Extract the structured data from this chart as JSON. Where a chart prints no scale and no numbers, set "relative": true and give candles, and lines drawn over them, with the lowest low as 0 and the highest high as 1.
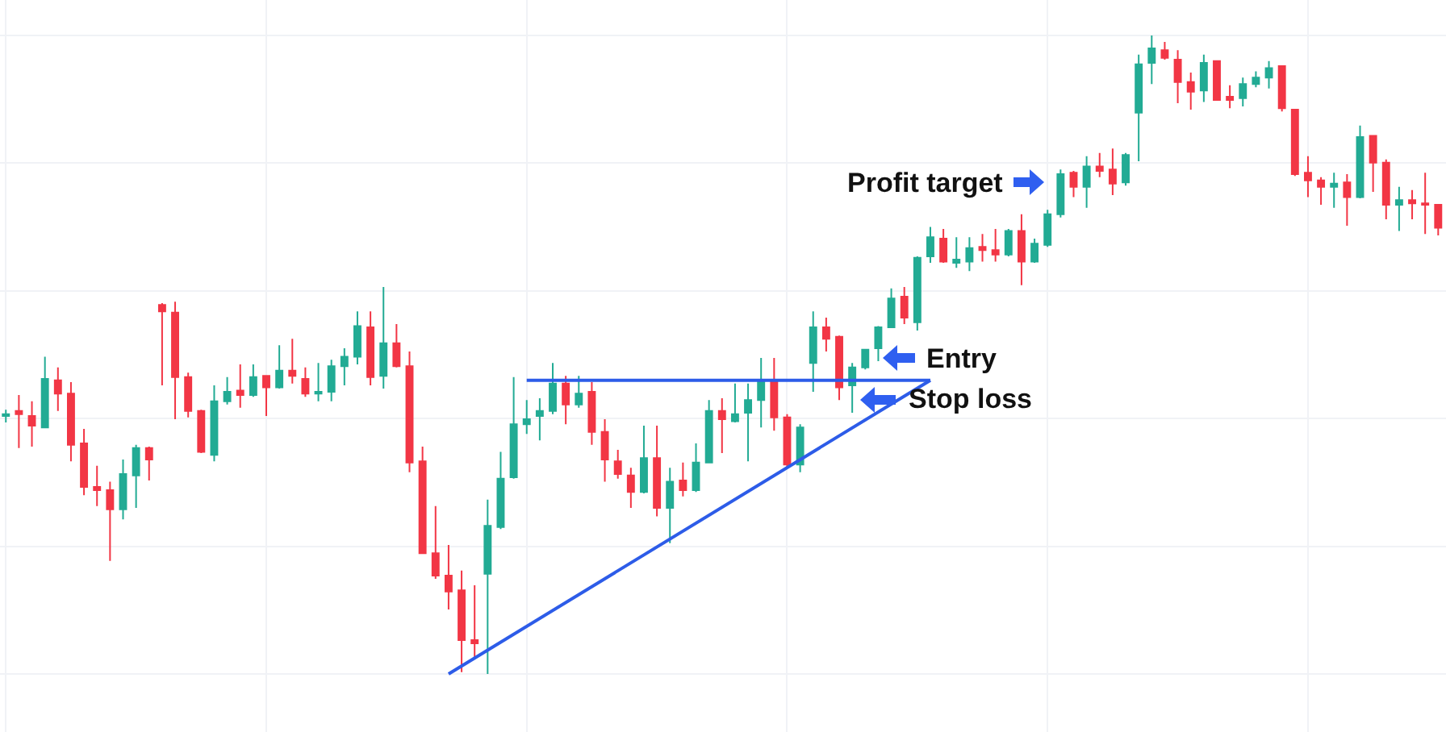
{
  "chart_data": {
    "type": "candlestick",
    "relative": true,
    "grid": true,
    "tick_labels": false,
    "categories": [
      null,
      null,
      null,
      null,
      null,
      null,
      null,
      null,
      null,
      null,
      null,
      null,
      null,
      null,
      null,
      null,
      null,
      null,
      null,
      null,
      null,
      null,
      null,
      null,
      null,
      null,
      null,
      null,
      null,
      null,
      null,
      null,
      null,
      null,
      null,
      null,
      null,
      null,
      null,
      null,
      null,
      null,
      null,
      null,
      null,
      null,
      null,
      null,
      null,
      null,
      null,
      null,
      null,
      null,
      null,
      null,
      null,
      null,
      null,
      null,
      null,
      null,
      null,
      null,
      null,
      null,
      null,
      null,
      null,
      null,
      null,
      null,
      null,
      null,
      null,
      null,
      null,
      null,
      null,
      null,
      null,
      null,
      null,
      null,
      null,
      null,
      null,
      null,
      null,
      null,
      null,
      null,
      null,
      null,
      null,
      null,
      null,
      null,
      null,
      null,
      null,
      null,
      null,
      null,
      null,
      null,
      null,
      null,
      null,
      null,
      null
    ],
    "ohlc": [
      [
        0.404,
        0.414,
        0.394,
        0.407
      ],
      [
        0.412,
        0.437,
        0.354,
        0.407
      ],
      [
        0.404,
        0.427,
        0.356,
        0.389
      ],
      [
        0.386,
        0.497,
        0.386,
        0.462
      ],
      [
        0.46,
        0.48,
        0.412,
        0.439
      ],
      [
        0.439,
        0.457,
        0.333,
        0.359
      ],
      [
        0.361,
        0.384,
        0.28,
        0.293
      ],
      [
        0.293,
        0.326,
        0.263,
        0.288
      ],
      [
        0.288,
        0.301,
        0.177,
        0.258
      ],
      [
        0.258,
        0.336,
        0.242,
        0.313
      ],
      [
        0.311,
        0.359,
        0.26,
        0.354
      ],
      [
        0.354,
        0.356,
        0.303,
        0.336
      ],
      [
        0.578,
        0.581,
        0.452,
        0.568
      ],
      [
        0.566,
        0.583,
        0.399,
        0.465
      ],
      [
        0.465,
        0.472,
        0.402,
        0.412
      ],
      [
        0.412,
        0.414,
        0.346,
        0.348
      ],
      [
        0.343,
        0.452,
        0.333,
        0.427
      ],
      [
        0.427,
        0.465,
        0.422,
        0.442
      ],
      [
        0.444,
        0.485,
        0.417,
        0.437
      ],
      [
        0.437,
        0.485,
        0.434,
        0.465
      ],
      [
        0.467,
        0.467,
        0.404,
        0.449
      ],
      [
        0.449,
        0.515,
        0.447,
        0.475
      ],
      [
        0.475,
        0.525,
        0.455,
        0.467
      ],
      [
        0.462,
        0.48,
        0.434,
        0.439
      ],
      [
        0.439,
        0.487,
        0.427,
        0.442
      ],
      [
        0.442,
        0.492,
        0.427,
        0.482
      ],
      [
        0.482,
        0.51,
        0.452,
        0.497
      ],
      [
        0.497,
        0.568,
        0.485,
        0.545
      ],
      [
        0.543,
        0.568,
        0.452,
        0.465
      ],
      [
        0.467,
        0.606,
        0.447,
        0.518
      ],
      [
        0.518,
        0.548,
        0.48,
        0.482
      ],
      [
        0.482,
        0.505,
        0.316,
        0.331
      ],
      [
        0.333,
        0.356,
        0.189,
        0.189
      ],
      [
        0.189,
        0.263,
        0.149,
        0.154
      ],
      [
        0.154,
        0.202,
        0.101,
        0.129
      ],
      [
        0.131,
        0.162,
        0.003,
        0.053
      ],
      [
        0.053,
        0.139,
        0.025,
        0.048
      ],
      [
        0.157,
        0.273,
        0,
        0.232
      ],
      [
        0.23,
        0.348,
        0.227,
        0.306
      ],
      [
        0.308,
        0.465,
        0.306,
        0.391
      ],
      [
        0.391,
        0.429,
        0.376,
        0.399
      ],
      [
        0.404,
        0.432,
        0.366,
        0.412
      ],
      [
        0.412,
        0.487,
        0.407,
        0.455
      ],
      [
        0.455,
        0.467,
        0.391,
        0.422
      ],
      [
        0.422,
        0.467,
        0.417,
        0.439
      ],
      [
        0.442,
        0.457,
        0.359,
        0.379
      ],
      [
        0.379,
        0.399,
        0.301,
        0.336
      ],
      [
        0.333,
        0.351,
        0.306,
        0.313
      ],
      [
        0.311,
        0.323,
        0.26,
        0.285
      ],
      [
        0.285,
        0.389,
        0.283,
        0.338
      ],
      [
        0.338,
        0.389,
        0.247,
        0.26
      ],
      [
        0.26,
        0.323,
        0.205,
        0.301
      ],
      [
        0.303,
        0.331,
        0.278,
        0.288
      ],
      [
        0.288,
        0.361,
        0.285,
        0.331
      ],
      [
        0.331,
        0.429,
        0.331,
        0.412
      ],
      [
        0.412,
        0.432,
        0.346,
        0.399
      ],
      [
        0.396,
        0.455,
        0.394,
        0.407
      ],
      [
        0.409,
        0.455,
        0.333,
        0.429
      ],
      [
        0.429,
        0.495,
        0.386,
        0.457
      ],
      [
        0.457,
        0.495,
        0.381,
        0.402
      ],
      [
        0.402,
        0.407,
        0.323,
        0.328
      ],
      [
        0.328,
        0.391,
        0.316,
        0.386
      ],
      [
        0.487,
        0.568,
        0.442,
        0.543
      ],
      [
        0.543,
        0.558,
        0.505,
        0.525
      ],
      [
        0.528,
        0.53,
        0.429,
        0.449
      ],
      [
        0.452,
        0.487,
        0.409,
        0.48
      ],
      [
        0.48,
        0.508,
        0.477,
        0.508
      ],
      [
        0.51,
        0.545,
        0.49,
        0.543
      ],
      [
        0.543,
        0.604,
        0.543,
        0.588
      ],
      [
        0.591,
        0.606,
        0.548,
        0.558
      ],
      [
        0.551,
        0.654,
        0.538,
        0.652
      ],
      [
        0.654,
        0.7,
        0.644,
        0.684
      ],
      [
        0.682,
        0.697,
        0.644,
        0.646
      ],
      [
        0.644,
        0.684,
        0.636,
        0.649
      ],
      [
        0.646,
        0.684,
        0.631,
        0.667
      ],
      [
        0.669,
        0.689,
        0.646,
        0.664
      ],
      [
        0.664,
        0.697,
        0.646,
        0.657
      ],
      [
        0.657,
        0.697,
        0.654,
        0.694
      ],
      [
        0.694,
        0.72,
        0.609,
        0.646
      ],
      [
        0.646,
        0.682,
        0.644,
        0.674
      ],
      [
        0.672,
        0.727,
        0.669,
        0.72
      ],
      [
        0.72,
        0.79,
        0.715,
        0.783
      ],
      [
        0.785,
        0.788,
        0.747,
        0.763
      ],
      [
        0.763,
        0.811,
        0.73,
        0.795
      ],
      [
        0.795,
        0.816,
        0.778,
        0.788
      ],
      [
        0.79,
        0.823,
        0.75,
        0.768
      ],
      [
        0.77,
        0.816,
        0.765,
        0.813
      ],
      [
        0.879,
        0.97,
        0.803,
        0.955
      ],
      [
        0.957,
        1,
        0.924,
        0.98
      ],
      [
        0.977,
        0.99,
        0.962,
        0.965
      ],
      [
        0.962,
        0.977,
        0.894,
        0.927
      ],
      [
        0.927,
        0.942,
        0.884,
        0.912
      ],
      [
        0.914,
        0.97,
        0.896,
        0.957
      ],
      [
        0.96,
        0.96,
        0.899,
        0.899
      ],
      [
        0.904,
        0.922,
        0.886,
        0.899
      ],
      [
        0.902,
        0.934,
        0.889,
        0.924
      ],
      [
        0.924,
        0.944,
        0.919,
        0.934
      ],
      [
        0.934,
        0.96,
        0.917,
        0.949
      ],
      [
        0.952,
        0.952,
        0.881,
        0.886
      ],
      [
        0.884,
        0.884,
        0.78,
        0.783
      ],
      [
        0.785,
        0.811,
        0.747,
        0.773
      ],
      [
        0.773,
        0.778,
        0.735,
        0.763
      ],
      [
        0.763,
        0.785,
        0.73,
        0.768
      ],
      [
        0.77,
        0.783,
        0.702,
        0.747
      ],
      [
        0.747,
        0.859,
        0.745,
        0.841
      ],
      [
        0.843,
        0.843,
        0.755,
        0.801
      ],
      [
        0.801,
        0.806,
        0.712,
        0.735
      ],
      [
        0.735,
        0.763,
        0.694,
        0.742
      ],
      [
        0.742,
        0.758,
        0.712,
        0.737
      ],
      [
        0.737,
        0.785,
        0.689,
        0.735
      ],
      [
        0.735,
        0.735,
        0.687,
        0.699
      ]
    ],
    "colors": [
      "#22ab94",
      "#f23645",
      "#f23645",
      "#22ab94",
      "#f23645",
      "#f23645",
      "#f23645",
      "#f23645",
      "#f23645",
      "#22ab94",
      "#22ab94",
      "#f23645",
      "#f23645",
      "#f23645",
      "#f23645",
      "#f23645",
      "#22ab94",
      "#22ab94",
      "#f23645",
      "#22ab94",
      "#f23645",
      "#22ab94",
      "#f23645",
      "#f23645",
      "#22ab94",
      "#22ab94",
      "#22ab94",
      "#22ab94",
      "#f23645",
      "#22ab94",
      "#f23645",
      "#f23645",
      "#f23645",
      "#f23645",
      "#f23645",
      "#f23645",
      "#f23645",
      "#22ab94",
      "#22ab94",
      "#22ab94",
      "#22ab94",
      "#22ab94",
      "#22ab94",
      "#f23645",
      "#22ab94",
      "#f23645",
      "#f23645",
      "#f23645",
      "#f23645",
      "#22ab94",
      "#f23645",
      "#22ab94",
      "#f23645",
      "#22ab94",
      "#22ab94",
      "#f23645",
      "#22ab94",
      "#22ab94",
      "#22ab94",
      "#f23645",
      "#f23645",
      "#22ab94",
      "#22ab94",
      "#f23645",
      "#f23645",
      "#22ab94",
      "#22ab94",
      "#22ab94",
      "#22ab94",
      "#f23645",
      "#22ab94",
      "#22ab94",
      "#f23645",
      "#22ab94",
      "#22ab94",
      "#f23645",
      "#f23645",
      "#22ab94",
      "#f23645",
      "#22ab94",
      "#22ab94",
      "#22ab94",
      "#f23645",
      "#22ab94",
      "#f23645",
      "#f23645",
      "#22ab94",
      "#22ab94",
      "#22ab94",
      "#f23645",
      "#f23645",
      "#f23645",
      "#22ab94",
      "#f23645",
      "#f23645",
      "#22ab94",
      "#22ab94",
      "#22ab94",
      "#f23645",
      "#f23645",
      "#f23645",
      "#f23645",
      "#22ab94",
      "#f23645",
      "#22ab94",
      "#f23645",
      "#f23645",
      "#22ab94",
      "#f23645",
      "#f23645",
      "#f23645"
    ],
    "series": [
      {
        "type": "line",
        "values": [
          null,
          null,
          null,
          null,
          null,
          null,
          null,
          null,
          null,
          null,
          null,
          null,
          null,
          null,
          null,
          null,
          null,
          null,
          null,
          null,
          null,
          null,
          null,
          null,
          null,
          null,
          null,
          null,
          null,
          null,
          null,
          null,
          null,
          null,
          null,
          null,
          null,
          null,
          null,
          null,
          0.46,
          null,
          null,
          null,
          null,
          null,
          null,
          null,
          null,
          null,
          null,
          null,
          null,
          null,
          null,
          null,
          null,
          null,
          null,
          null,
          null,
          null,
          null,
          null,
          null,
          null,
          null,
          null,
          null,
          null,
          null,
          0.46,
          null,
          null,
          null,
          null,
          null,
          null,
          null,
          null,
          null,
          null,
          null,
          null,
          null,
          null,
          null,
          null,
          null,
          null,
          null,
          null,
          null,
          null,
          null,
          null,
          null,
          null,
          null,
          null,
          null,
          null,
          null,
          null,
          null,
          null,
          null,
          null,
          null,
          null,
          null
        ],
        "color": "#2d5ce8"
      },
      {
        "type": "line",
        "values": [
          null,
          null,
          null,
          null,
          null,
          null,
          null,
          null,
          null,
          null,
          null,
          null,
          null,
          null,
          null,
          null,
          null,
          null,
          null,
          null,
          null,
          null,
          null,
          null,
          null,
          null,
          null,
          null,
          null,
          null,
          null,
          null,
          null,
          null,
          0,
          null,
          null,
          null,
          null,
          null,
          null,
          null,
          null,
          null,
          null,
          null,
          null,
          null,
          null,
          null,
          null,
          null,
          null,
          null,
          null,
          null,
          null,
          null,
          null,
          null,
          null,
          null,
          null,
          null,
          null,
          null,
          null,
          null,
          null,
          null,
          null,
          0.46,
          null,
          null,
          null,
          null,
          null,
          null,
          null,
          null,
          null,
          null,
          null,
          null,
          null,
          null,
          null,
          null,
          null,
          null,
          null,
          null,
          null,
          null,
          null,
          null,
          null,
          null,
          null,
          null,
          null,
          null,
          null,
          null,
          null,
          null,
          null,
          null,
          null,
          null,
          null
        ],
        "color": "#2d5ce8"
      }
    ],
    "line_style": "solid",
    "marker": "none",
    "annotations": [
      "Profit target",
      "Entry",
      "Stop loss"
    ]
  }
}
